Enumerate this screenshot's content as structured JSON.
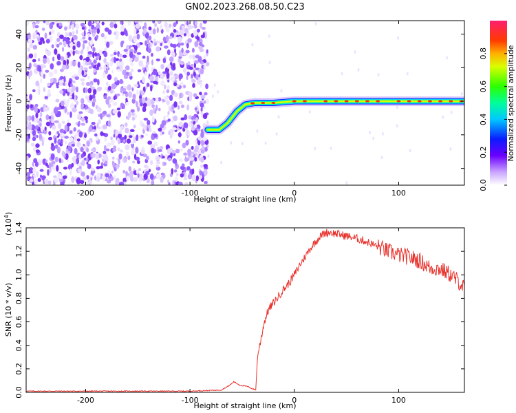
{
  "title": "GN02.2023.268.08.50.C23",
  "chart_data": [
    {
      "type": "heatmap",
      "xlabel": "Height of straight line (km)",
      "ylabel": "Frequency (Hz)",
      "xlim": [
        -257,
        163
      ],
      "ylim": [
        -50,
        48
      ],
      "xticks": [
        -200,
        -100,
        0,
        100
      ],
      "yticks": [
        -40,
        -20,
        0,
        20,
        40
      ],
      "noise_region_x": [
        -257,
        -83
      ],
      "signal_track": [
        {
          "x": -83,
          "y": -17
        },
        {
          "x": -72,
          "y": -17
        },
        {
          "x": -64,
          "y": -13
        },
        {
          "x": -55,
          "y": -6
        },
        {
          "x": -47,
          "y": -2
        },
        {
          "x": -38,
          "y": -1
        },
        {
          "x": -20,
          "y": -1
        },
        {
          "x": 0,
          "y": 0
        },
        {
          "x": 50,
          "y": 0
        },
        {
          "x": 100,
          "y": 0
        },
        {
          "x": 163,
          "y": 0
        }
      ],
      "colorbar": {
        "label": "Normalized spectral amplitude",
        "ticks": [
          "0.0",
          "0.2",
          "0.4",
          "0.6",
          "0.8"
        ],
        "tick_values": [
          0.0,
          0.2,
          0.4,
          0.6,
          0.8
        ],
        "range": [
          0,
          1
        ]
      }
    },
    {
      "type": "line",
      "xlabel": "Height of straight line (km)",
      "ylabel": "SNR (10 * v/v)",
      "yscale_label": "(x10",
      "yscale_exp": "4",
      "yscale_close": ")",
      "xlim": [
        -257,
        163
      ],
      "ylim": [
        0,
        1.4
      ],
      "xticks": [
        -200,
        -100,
        0,
        100
      ],
      "yticks": [
        "0.0",
        "0.2",
        "0.4",
        "0.6",
        "0.8",
        "1.0",
        "1.2",
        "1.4"
      ],
      "ytick_values": [
        0,
        0.2,
        0.4,
        0.6,
        0.8,
        1.0,
        1.2,
        1.4
      ],
      "color": "#e8302a",
      "series": [
        {
          "x": [
            -257,
            -100,
            -70,
            -62,
            -58,
            -52,
            -45,
            -40,
            -37,
            -35,
            -33,
            -30,
            -28,
            -25,
            -20,
            -15,
            -10,
            -5,
            0,
            5,
            10,
            15,
            20,
            25,
            30,
            35,
            40,
            50,
            60,
            70,
            80,
            90,
            100,
            110,
            120,
            130,
            140,
            150,
            160,
            163
          ],
          "values": [
            0.01,
            0.01,
            0.02,
            0.06,
            0.09,
            0.06,
            0.05,
            0.03,
            0.02,
            0.33,
            0.4,
            0.55,
            0.62,
            0.7,
            0.76,
            0.82,
            0.88,
            0.93,
            1.0,
            1.08,
            1.15,
            1.22,
            1.28,
            1.33,
            1.36,
            1.36,
            1.35,
            1.33,
            1.31,
            1.28,
            1.24,
            1.2,
            1.17,
            1.15,
            1.12,
            1.06,
            1.05,
            1.0,
            0.92,
            0.88
          ]
        }
      ]
    }
  ]
}
